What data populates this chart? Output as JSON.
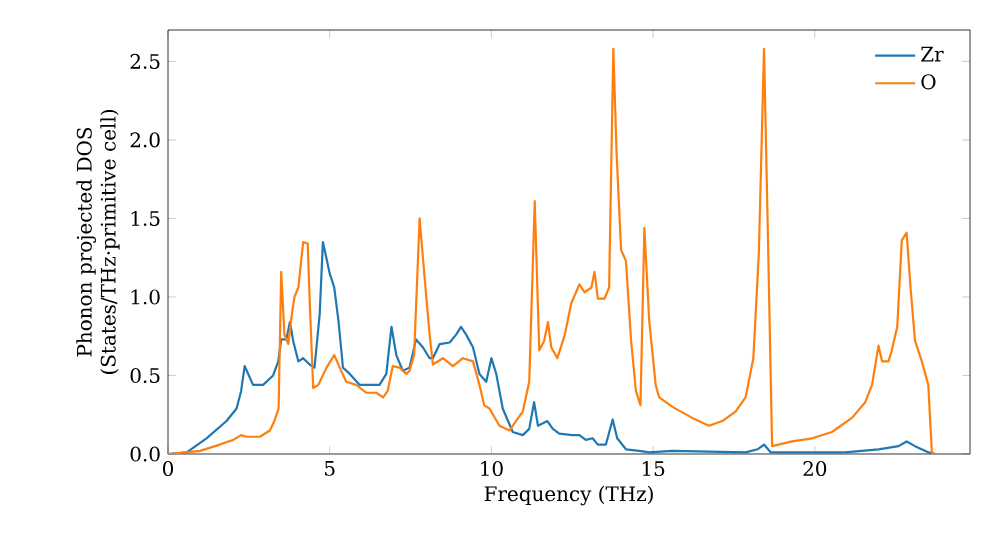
{
  "chart_data": {
    "type": "line",
    "xlabel": "Frequency (THz)",
    "ylabel": "Phonon projected DOS (States/THz·primitive cell)",
    "xlim": [
      0,
      24.8
    ],
    "ylim": [
      0,
      2.7
    ],
    "xticks": [
      0,
      5,
      10,
      15,
      20
    ],
    "yticks": [
      {
        "value": 0,
        "label": "0.0"
      },
      0.5,
      {
        "value": 1,
        "label": "1.0"
      },
      1.5,
      {
        "value": 2,
        "label": "2.0"
      },
      2.5
    ],
    "legend": "top right",
    "series": [
      {
        "name": "Zr",
        "color": "#1f77b4",
        "x": [
          0,
          0.58,
          1.19,
          1.81,
          2.12,
          2.26,
          2.37,
          2.63,
          2.94,
          3.25,
          3.41,
          3.5,
          3.66,
          3.77,
          3.87,
          4.03,
          4.18,
          4.38,
          4.53,
          4.69,
          4.79,
          5.0,
          5.14,
          5.27,
          5.41,
          5.62,
          5.93,
          6.23,
          6.54,
          6.75,
          6.91,
          7.06,
          7.26,
          7.47,
          7.67,
          7.88,
          8.09,
          8.19,
          8.4,
          8.71,
          8.91,
          9.06,
          9.22,
          9.43,
          9.63,
          9.84,
          10.0,
          10.15,
          10.35,
          10.66,
          10.97,
          11.17,
          11.32,
          11.44,
          11.73,
          11.9,
          12.1,
          12.51,
          12.72,
          12.92,
          13.13,
          13.29,
          13.54,
          13.75,
          13.89,
          14.16,
          14.57,
          14.88,
          15.6,
          17.86,
          18.23,
          18.43,
          18.64,
          20.94,
          21.97,
          22.59,
          22.84,
          23.1,
          23.52,
          23.72
        ],
        "values": [
          0,
          0.01,
          0.1,
          0.21,
          0.29,
          0.4,
          0.56,
          0.44,
          0.44,
          0.5,
          0.59,
          0.73,
          0.73,
          0.84,
          0.72,
          0.59,
          0.61,
          0.57,
          0.55,
          0.89,
          1.35,
          1.15,
          1.06,
          0.85,
          0.55,
          0.51,
          0.44,
          0.44,
          0.44,
          0.51,
          0.81,
          0.63,
          0.53,
          0.55,
          0.73,
          0.68,
          0.61,
          0.61,
          0.7,
          0.71,
          0.76,
          0.81,
          0.76,
          0.68,
          0.51,
          0.46,
          0.61,
          0.51,
          0.29,
          0.14,
          0.12,
          0.16,
          0.33,
          0.18,
          0.21,
          0.16,
          0.13,
          0.12,
          0.12,
          0.09,
          0.1,
          0.06,
          0.06,
          0.22,
          0.1,
          0.03,
          0.02,
          0.01,
          0.02,
          0.01,
          0.03,
          0.06,
          0.01,
          0.01,
          0.03,
          0.05,
          0.08,
          0.05,
          0.01,
          0
        ]
      },
      {
        "name": "O",
        "color": "#ff7f0e",
        "x": [
          0,
          0.99,
          1.6,
          2.02,
          2.26,
          2.43,
          2.84,
          3.15,
          3.29,
          3.42,
          3.5,
          3.6,
          3.72,
          3.83,
          3.91,
          4.03,
          4.18,
          4.32,
          4.38,
          4.49,
          4.65,
          4.9,
          5.14,
          5.31,
          5.51,
          5.82,
          6.13,
          6.44,
          6.65,
          6.79,
          6.95,
          7.16,
          7.37,
          7.47,
          7.61,
          7.78,
          7.94,
          8.09,
          8.19,
          8.5,
          8.81,
          9.12,
          9.43,
          9.63,
          9.78,
          9.94,
          10.25,
          10.56,
          10.76,
          10.97,
          11.17,
          11.34,
          11.48,
          11.63,
          11.75,
          11.85,
          12.04,
          12.27,
          12.47,
          12.72,
          12.88,
          13.09,
          13.19,
          13.29,
          13.5,
          13.64,
          13.77,
          13.87,
          14.01,
          14.16,
          14.32,
          14.47,
          14.61,
          14.73,
          14.88,
          15.08,
          15.19,
          15.6,
          16.21,
          16.73,
          17.14,
          17.55,
          17.86,
          18.1,
          18.27,
          18.43,
          18.54,
          18.68,
          19.3,
          19.92,
          20.53,
          21.15,
          21.56,
          21.77,
          21.97,
          22.08,
          22.28,
          22.38,
          22.55,
          22.69,
          22.84,
          22.96,
          23.1,
          23.31,
          23.51,
          23.62,
          23.72
        ],
        "values": [
          0,
          0.02,
          0.06,
          0.09,
          0.12,
          0.11,
          0.11,
          0.15,
          0.21,
          0.29,
          1.16,
          0.76,
          0.7,
          0.89,
          1.0,
          1.06,
          1.35,
          1.34,
          0.98,
          0.42,
          0.44,
          0.55,
          0.63,
          0.55,
          0.46,
          0.44,
          0.39,
          0.39,
          0.36,
          0.4,
          0.56,
          0.55,
          0.51,
          0.53,
          0.63,
          1.5,
          1.11,
          0.76,
          0.57,
          0.61,
          0.56,
          0.61,
          0.59,
          0.44,
          0.31,
          0.29,
          0.18,
          0.15,
          0.21,
          0.27,
          0.46,
          1.61,
          0.66,
          0.72,
          0.84,
          0.68,
          0.61,
          0.76,
          0.96,
          1.08,
          1.03,
          1.06,
          1.16,
          0.99,
          0.99,
          1.06,
          2.58,
          1.92,
          1.3,
          1.23,
          0.72,
          0.4,
          0.31,
          1.44,
          0.85,
          0.44,
          0.36,
          0.3,
          0.23,
          0.18,
          0.21,
          0.27,
          0.36,
          0.61,
          1.28,
          2.58,
          1.49,
          0.05,
          0.08,
          0.1,
          0.14,
          0.23,
          0.33,
          0.44,
          0.69,
          0.59,
          0.59,
          0.66,
          0.81,
          1.36,
          1.41,
          1.06,
          0.72,
          0.59,
          0.44,
          0.01,
          0
        ]
      }
    ]
  }
}
